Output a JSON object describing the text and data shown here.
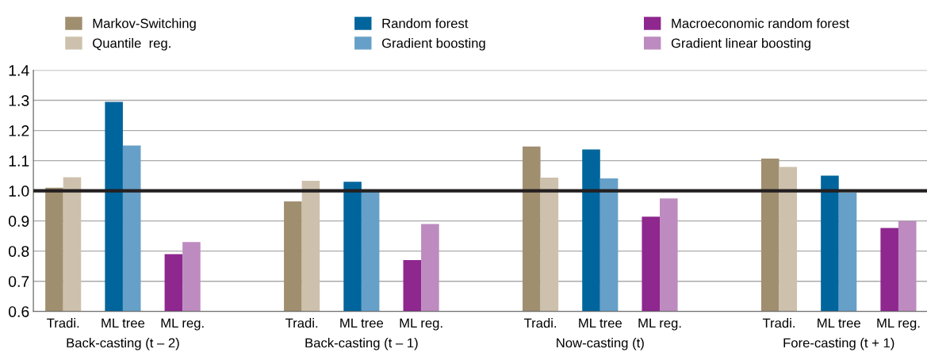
{
  "chart_data": {
    "type": "bar",
    "categories": [
      "Tradi.",
      "ML tree",
      "ML reg.",
      null,
      "Tradi.",
      "ML tree",
      "ML reg.",
      null,
      "Tradi.",
      "ML tree",
      "ML reg.",
      null,
      "Tradi.",
      "ML tree",
      "ML reg."
    ],
    "series": [
      {
        "name": "Markov-Switching",
        "color": "#a08f6f",
        "values": [
          1.01,
          null,
          null,
          null,
          0.965,
          null,
          null,
          null,
          1.147,
          null,
          null,
          null,
          1.107,
          null,
          null
        ]
      },
      {
        "name": "Quantile  reg.",
        "color": "#cdc1ad",
        "values": [
          1.045,
          null,
          null,
          null,
          1.033,
          null,
          null,
          null,
          1.044,
          null,
          null,
          null,
          1.079,
          null,
          null
        ]
      },
      {
        "name": "Random forest",
        "color": "#00659c",
        "values": [
          null,
          1.295,
          null,
          null,
          null,
          1.03,
          null,
          null,
          null,
          1.137,
          null,
          null,
          null,
          1.05,
          null
        ]
      },
      {
        "name": "Gradient boosting",
        "color": "#66a0c8",
        "values": [
          null,
          1.15,
          null,
          null,
          null,
          1.0,
          null,
          null,
          null,
          1.041,
          null,
          null,
          null,
          0.994,
          null
        ]
      },
      {
        "name": "Macroeconomic random forest",
        "color": "#8e278e",
        "values": [
          null,
          null,
          0.79,
          null,
          null,
          null,
          0.77,
          null,
          null,
          null,
          0.914,
          null,
          null,
          null,
          0.877
        ]
      },
      {
        "name": "Gradient linear boosting",
        "color": "#bd8bbf",
        "values": [
          null,
          null,
          0.83,
          null,
          null,
          null,
          0.89,
          null,
          null,
          null,
          0.975,
          null,
          null,
          null,
          0.9
        ]
      }
    ],
    "annotations": [
      "Back-casting (t – 2)",
      "Back-casting (t – 1)",
      "Now-casting (t)",
      "Fore-casting (t + 1)"
    ],
    "ref_lines": [
      {
        "axis": "y",
        "value": 1.0,
        "color": "#231f20"
      }
    ],
    "ylim": [
      0.6,
      1.4
    ],
    "yticks": [
      {
        "value": 0.6,
        "label": "0.6"
      },
      {
        "value": 0.7,
        "label": "0.7"
      },
      {
        "value": 0.8,
        "label": "0.8"
      },
      {
        "value": 0.9,
        "label": "0.9"
      },
      {
        "value": 1.0,
        "label": "1.0"
      },
      {
        "value": 1.1,
        "label": "1.1"
      },
      {
        "value": 1.2,
        "label": "1.2"
      },
      {
        "value": 1.3,
        "label": "1.3"
      },
      {
        "value": 1.4,
        "label": "1.4"
      }
    ],
    "grid": "y",
    "legend": "top"
  }
}
